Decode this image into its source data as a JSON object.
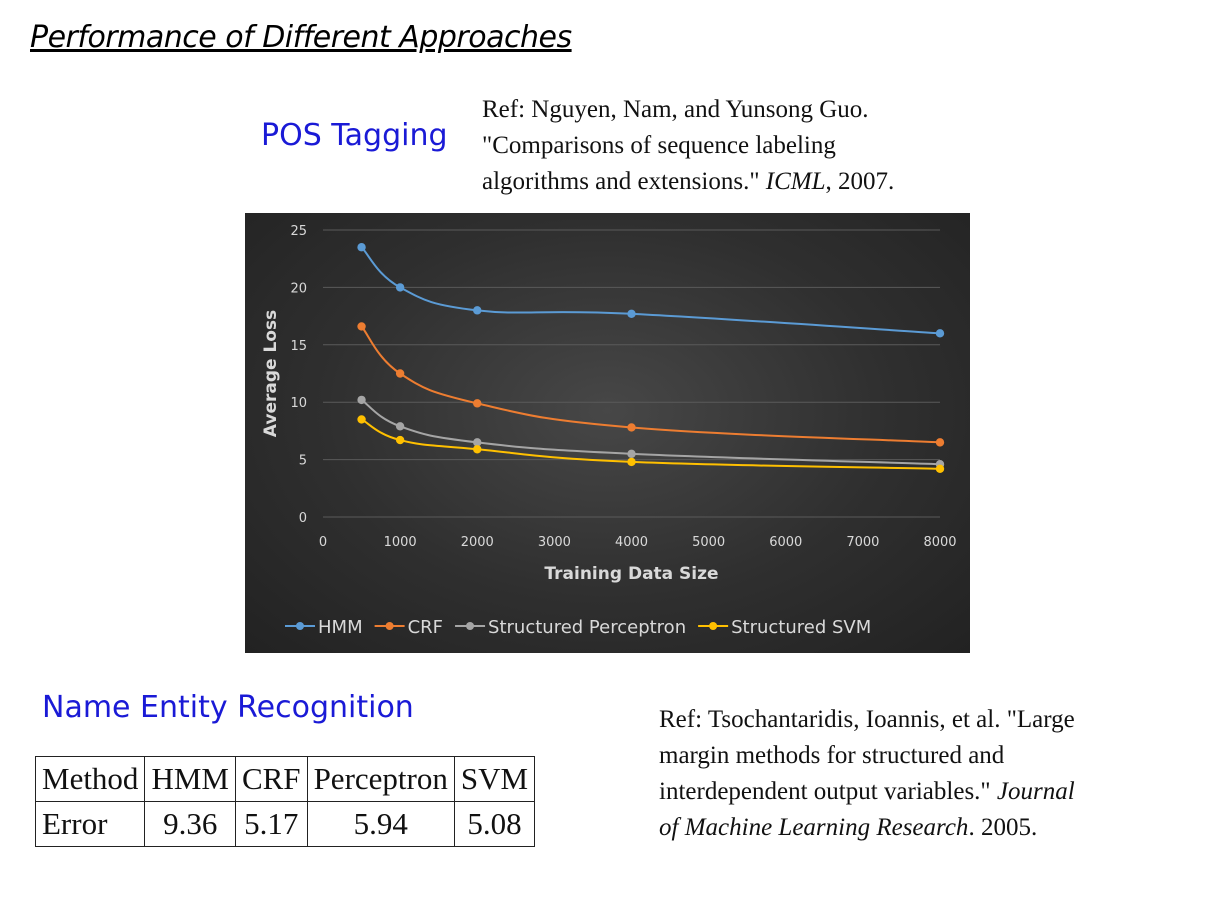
{
  "slide": {
    "title": "Performance of Different Approaches"
  },
  "pos": {
    "heading": "POS Tagging",
    "ref_lines": [
      "Ref: Nguyen, Nam, and Yunsong Guo.",
      "\"Comparisons of sequence labeling",
      "algorithms and extensions.\" ",
      "ICML",
      ", 2007."
    ]
  },
  "ner": {
    "heading": "Name Entity Recognition",
    "table": {
      "header": [
        "Method",
        "HMM",
        "CRF",
        "Perceptron",
        "SVM"
      ],
      "row": [
        "Error",
        "9.36",
        "5.17",
        "5.94",
        "5.08"
      ]
    },
    "ref_lines": [
      "Ref: Tsochantaridis, Ioannis, et al. \"Large",
      "margin methods for structured and",
      "interdependent output variables.\" ",
      "Journal",
      "of Machine Learning Research",
      ". 2005."
    ]
  },
  "chart_data": {
    "type": "line",
    "title": "",
    "xlabel": "Training Data Size",
    "ylabel": "Average Loss",
    "xlim": [
      0,
      8000
    ],
    "ylim": [
      0,
      25
    ],
    "x_ticks": [
      0,
      1000,
      2000,
      3000,
      4000,
      5000,
      6000,
      7000,
      8000
    ],
    "y_ticks": [
      0,
      5,
      10,
      15,
      20,
      25
    ],
    "grid": true,
    "legend_position": "bottom",
    "x": [
      500,
      1000,
      2000,
      4000,
      8000
    ],
    "series": [
      {
        "name": "HMM",
        "color": "#5b9bd5",
        "values": [
          23.5,
          20.0,
          18.0,
          17.7,
          16.0
        ]
      },
      {
        "name": "CRF",
        "color": "#ed7d31",
        "values": [
          16.6,
          12.5,
          9.9,
          7.8,
          6.5
        ]
      },
      {
        "name": "Structured Perceptron",
        "color": "#a5a5a5",
        "values": [
          10.2,
          7.9,
          6.5,
          5.5,
          4.6
        ]
      },
      {
        "name": "Structured SVM",
        "color": "#ffc000",
        "values": [
          8.5,
          6.7,
          5.9,
          4.8,
          4.2
        ]
      }
    ]
  }
}
